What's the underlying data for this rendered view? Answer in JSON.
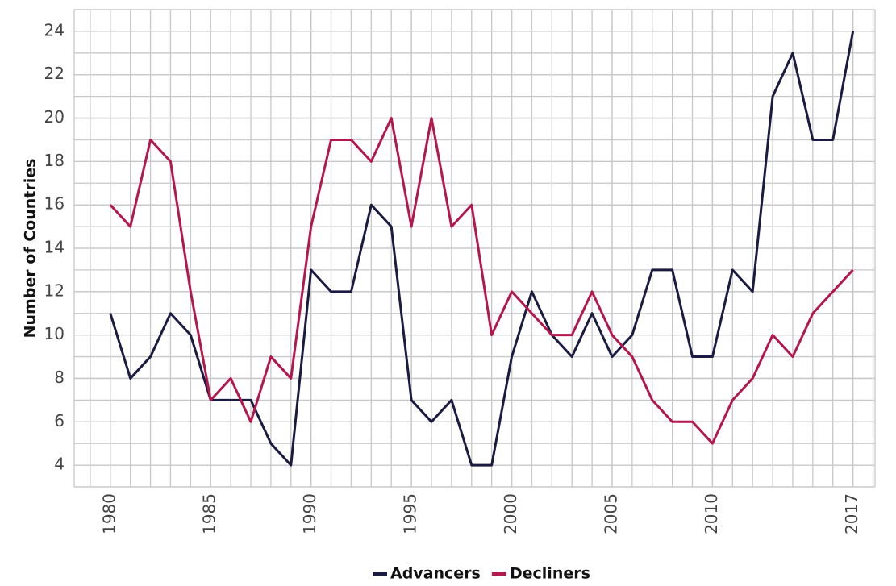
{
  "chart_data": {
    "type": "line",
    "y_label": "Number of Countries",
    "x": [
      1980,
      1981,
      1982,
      1983,
      1984,
      1985,
      1986,
      1987,
      1988,
      1989,
      1990,
      1991,
      1992,
      1993,
      1994,
      1995,
      1996,
      1997,
      1998,
      1999,
      2000,
      2001,
      2002,
      2003,
      2004,
      2005,
      2006,
      2007,
      2008,
      2009,
      2010,
      2011,
      2012,
      2013,
      2014,
      2015,
      2016,
      2017
    ],
    "series": [
      {
        "name": "Advancers",
        "color": "#1b1a40",
        "values": [
          11,
          8,
          9,
          11,
          10,
          7,
          7,
          7,
          5,
          4,
          13,
          12,
          12,
          16,
          15,
          7,
          6,
          7,
          4,
          4,
          9,
          12,
          10,
          9,
          11,
          9,
          10,
          13,
          13,
          9,
          9,
          13,
          12,
          21,
          23,
          19,
          19,
          24
        ]
      },
      {
        "name": "Decliners",
        "color": "#b3174e",
        "values": [
          16,
          15,
          19,
          18,
          12,
          7,
          8,
          6,
          9,
          8,
          15,
          19,
          19,
          18,
          20,
          15,
          20,
          15,
          16,
          10,
          12,
          11,
          10,
          10,
          12,
          10,
          9,
          7,
          6,
          6,
          5,
          7,
          8,
          10,
          9,
          11,
          12,
          13
        ]
      }
    ],
    "xlim": [
      1978.2,
      2018.1
    ],
    "xticks": [
      1980,
      1985,
      1990,
      1995,
      2000,
      2005,
      2010,
      2017
    ],
    "ylim": [
      3,
      25
    ],
    "yticks": [
      4,
      6,
      8,
      10,
      12,
      14,
      16,
      18,
      20,
      22,
      24
    ],
    "grid": true,
    "minor_grid": true,
    "legend": "bottom"
  }
}
